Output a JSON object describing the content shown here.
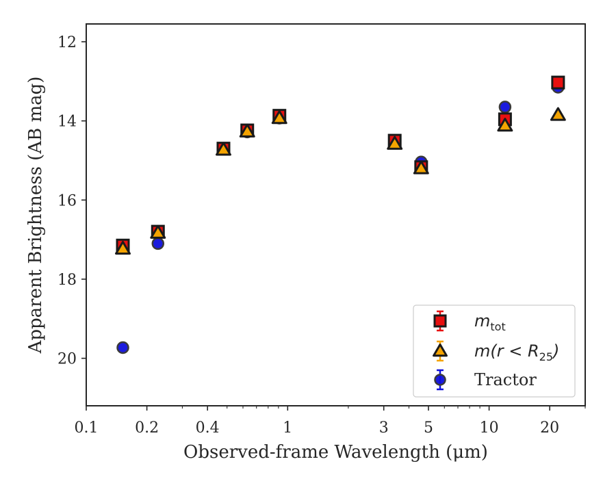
{
  "chart_data": {
    "type": "scatter",
    "xlabel": "Observed-frame Wavelength (μm)",
    "ylabel": "Apparent Brightness (AB mag)",
    "xscale": "log",
    "xlim": [
      0.1,
      30
    ],
    "ylim": [
      21.2,
      11.55
    ],
    "y_inverted": true,
    "xticks": [
      {
        "value": 0.1,
        "label": "0.1"
      },
      {
        "value": 0.2,
        "label": "0.2"
      },
      {
        "value": 0.4,
        "label": "0.4"
      },
      {
        "value": 1,
        "label": "1"
      },
      {
        "value": 3,
        "label": "3"
      },
      {
        "value": 5,
        "label": "5"
      },
      {
        "value": 10,
        "label": "10"
      },
      {
        "value": 20,
        "label": "20"
      }
    ],
    "yticks": [
      {
        "value": 12,
        "label": "12"
      },
      {
        "value": 14,
        "label": "14"
      },
      {
        "value": 16,
        "label": "16"
      },
      {
        "value": 18,
        "label": "18"
      },
      {
        "value": 20,
        "label": "20"
      }
    ],
    "grid": false,
    "legend_position": "lower-right",
    "series": [
      {
        "name": "Tractor",
        "legend_label": "Tractor",
        "marker": "circle",
        "fill": "#0f0fdc",
        "edge": "#3a3a3a",
        "points": [
          {
            "x": 0.152,
            "y": 19.73
          },
          {
            "x": 0.227,
            "y": 17.1
          },
          {
            "x": 0.48,
            "y": 14.71
          },
          {
            "x": 0.63,
            "y": 14.28
          },
          {
            "x": 0.91,
            "y": 13.93
          },
          {
            "x": 3.4,
            "y": 14.52
          },
          {
            "x": 4.6,
            "y": 15.04
          },
          {
            "x": 12.0,
            "y": 13.65
          },
          {
            "x": 22.0,
            "y": 13.15
          }
        ]
      },
      {
        "name": "m_tot",
        "legend_label_base": "m",
        "legend_label_sub": "tot",
        "marker": "square",
        "fill": "#e81010",
        "edge": "#1a1a1a",
        "points": [
          {
            "x": 0.152,
            "y": 17.15
          },
          {
            "x": 0.227,
            "y": 16.8
          },
          {
            "x": 0.48,
            "y": 14.7
          },
          {
            "x": 0.63,
            "y": 14.24
          },
          {
            "x": 0.91,
            "y": 13.87
          },
          {
            "x": 3.4,
            "y": 14.5
          },
          {
            "x": 4.6,
            "y": 15.17
          },
          {
            "x": 12.0,
            "y": 13.96
          },
          {
            "x": 22.0,
            "y": 13.03
          }
        ]
      },
      {
        "name": "m(r < R25)",
        "legend_label_base": "m(r < R",
        "legend_label_sub": "25",
        "legend_label_tail": ")",
        "marker": "triangle",
        "fill": "#f4a300",
        "edge": "#1a1a1a",
        "points": [
          {
            "x": 0.152,
            "y": 17.23
          },
          {
            "x": 0.227,
            "y": 16.83
          },
          {
            "x": 0.48,
            "y": 14.73
          },
          {
            "x": 0.63,
            "y": 14.27
          },
          {
            "x": 0.91,
            "y": 13.93
          },
          {
            "x": 3.4,
            "y": 14.58
          },
          {
            "x": 4.6,
            "y": 15.2
          },
          {
            "x": 12.0,
            "y": 14.12
          },
          {
            "x": 22.0,
            "y": 13.85
          }
        ]
      }
    ]
  }
}
